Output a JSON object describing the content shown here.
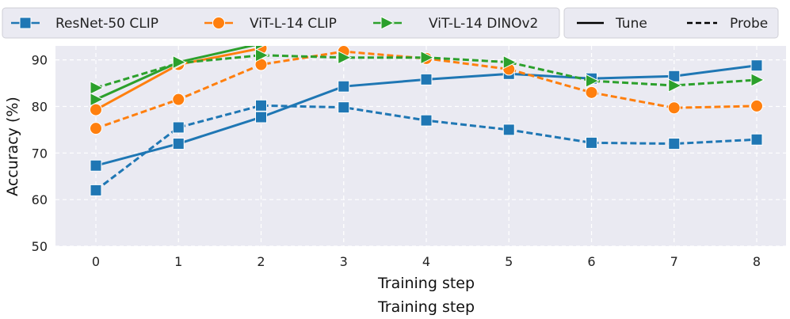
{
  "chart_data": {
    "type": "line",
    "title": "",
    "xlabel": "Training step",
    "xlabel_secondary": "Training step",
    "ylabel": "Accuracy (%)",
    "x": [
      0,
      1,
      2,
      3,
      4,
      5,
      6,
      7,
      8
    ],
    "ylim": [
      50,
      93
    ],
    "yticks": [
      50,
      60,
      70,
      80,
      90
    ],
    "grid": true,
    "series": [
      {
        "name": "ResNet-50 CLIP",
        "style": "Tune",
        "color": "#1f77b4",
        "marker": "square",
        "values": [
          67.3,
          72.0,
          77.7,
          84.3,
          85.8,
          87.0,
          86.0,
          86.5,
          88.8
        ]
      },
      {
        "name": "ResNet-50 CLIP",
        "style": "Probe",
        "color": "#1f77b4",
        "marker": "square",
        "values": [
          62.0,
          75.5,
          80.2,
          79.8,
          77.0,
          75.0,
          72.2,
          72.0,
          72.9
        ]
      },
      {
        "name": "ViT-L-14 CLIP",
        "style": "Tune",
        "color": "#ff7f0e",
        "marker": "circle",
        "values": [
          79.3,
          89.0,
          92.5,
          null,
          null,
          null,
          null,
          null,
          null
        ]
      },
      {
        "name": "ViT-L-14 CLIP",
        "style": "Probe",
        "color": "#ff7f0e",
        "marker": "circle",
        "values": [
          75.3,
          81.5,
          89.0,
          91.8,
          90.3,
          88.0,
          83.0,
          79.7,
          80.1
        ]
      },
      {
        "name": "ViT-L-14 DINOv2",
        "style": "Tune",
        "color": "#2ca02c",
        "marker": "triangle-right",
        "values": [
          81.5,
          89.5,
          93.5,
          null,
          null,
          null,
          null,
          null,
          null
        ]
      },
      {
        "name": "ViT-L-14 DINOv2",
        "style": "Probe",
        "color": "#2ca02c",
        "marker": "triangle-right",
        "values": [
          84.0,
          89.3,
          91.0,
          90.5,
          90.5,
          89.5,
          85.5,
          84.5,
          85.7
        ]
      }
    ],
    "legend": {
      "placement": "top",
      "models": [
        {
          "label": "ResNet-50 CLIP",
          "color": "#1f77b4",
          "marker": "square"
        },
        {
          "label": "ViT-L-14 CLIP",
          "color": "#ff7f0e",
          "marker": "circle"
        },
        {
          "label": "ViT-L-14 DINOv2",
          "color": "#2ca02c",
          "marker": "triangle-right"
        }
      ],
      "styles": [
        {
          "label": "Tune",
          "dash": "solid"
        },
        {
          "label": "Probe",
          "dash": "dashed"
        }
      ]
    }
  }
}
